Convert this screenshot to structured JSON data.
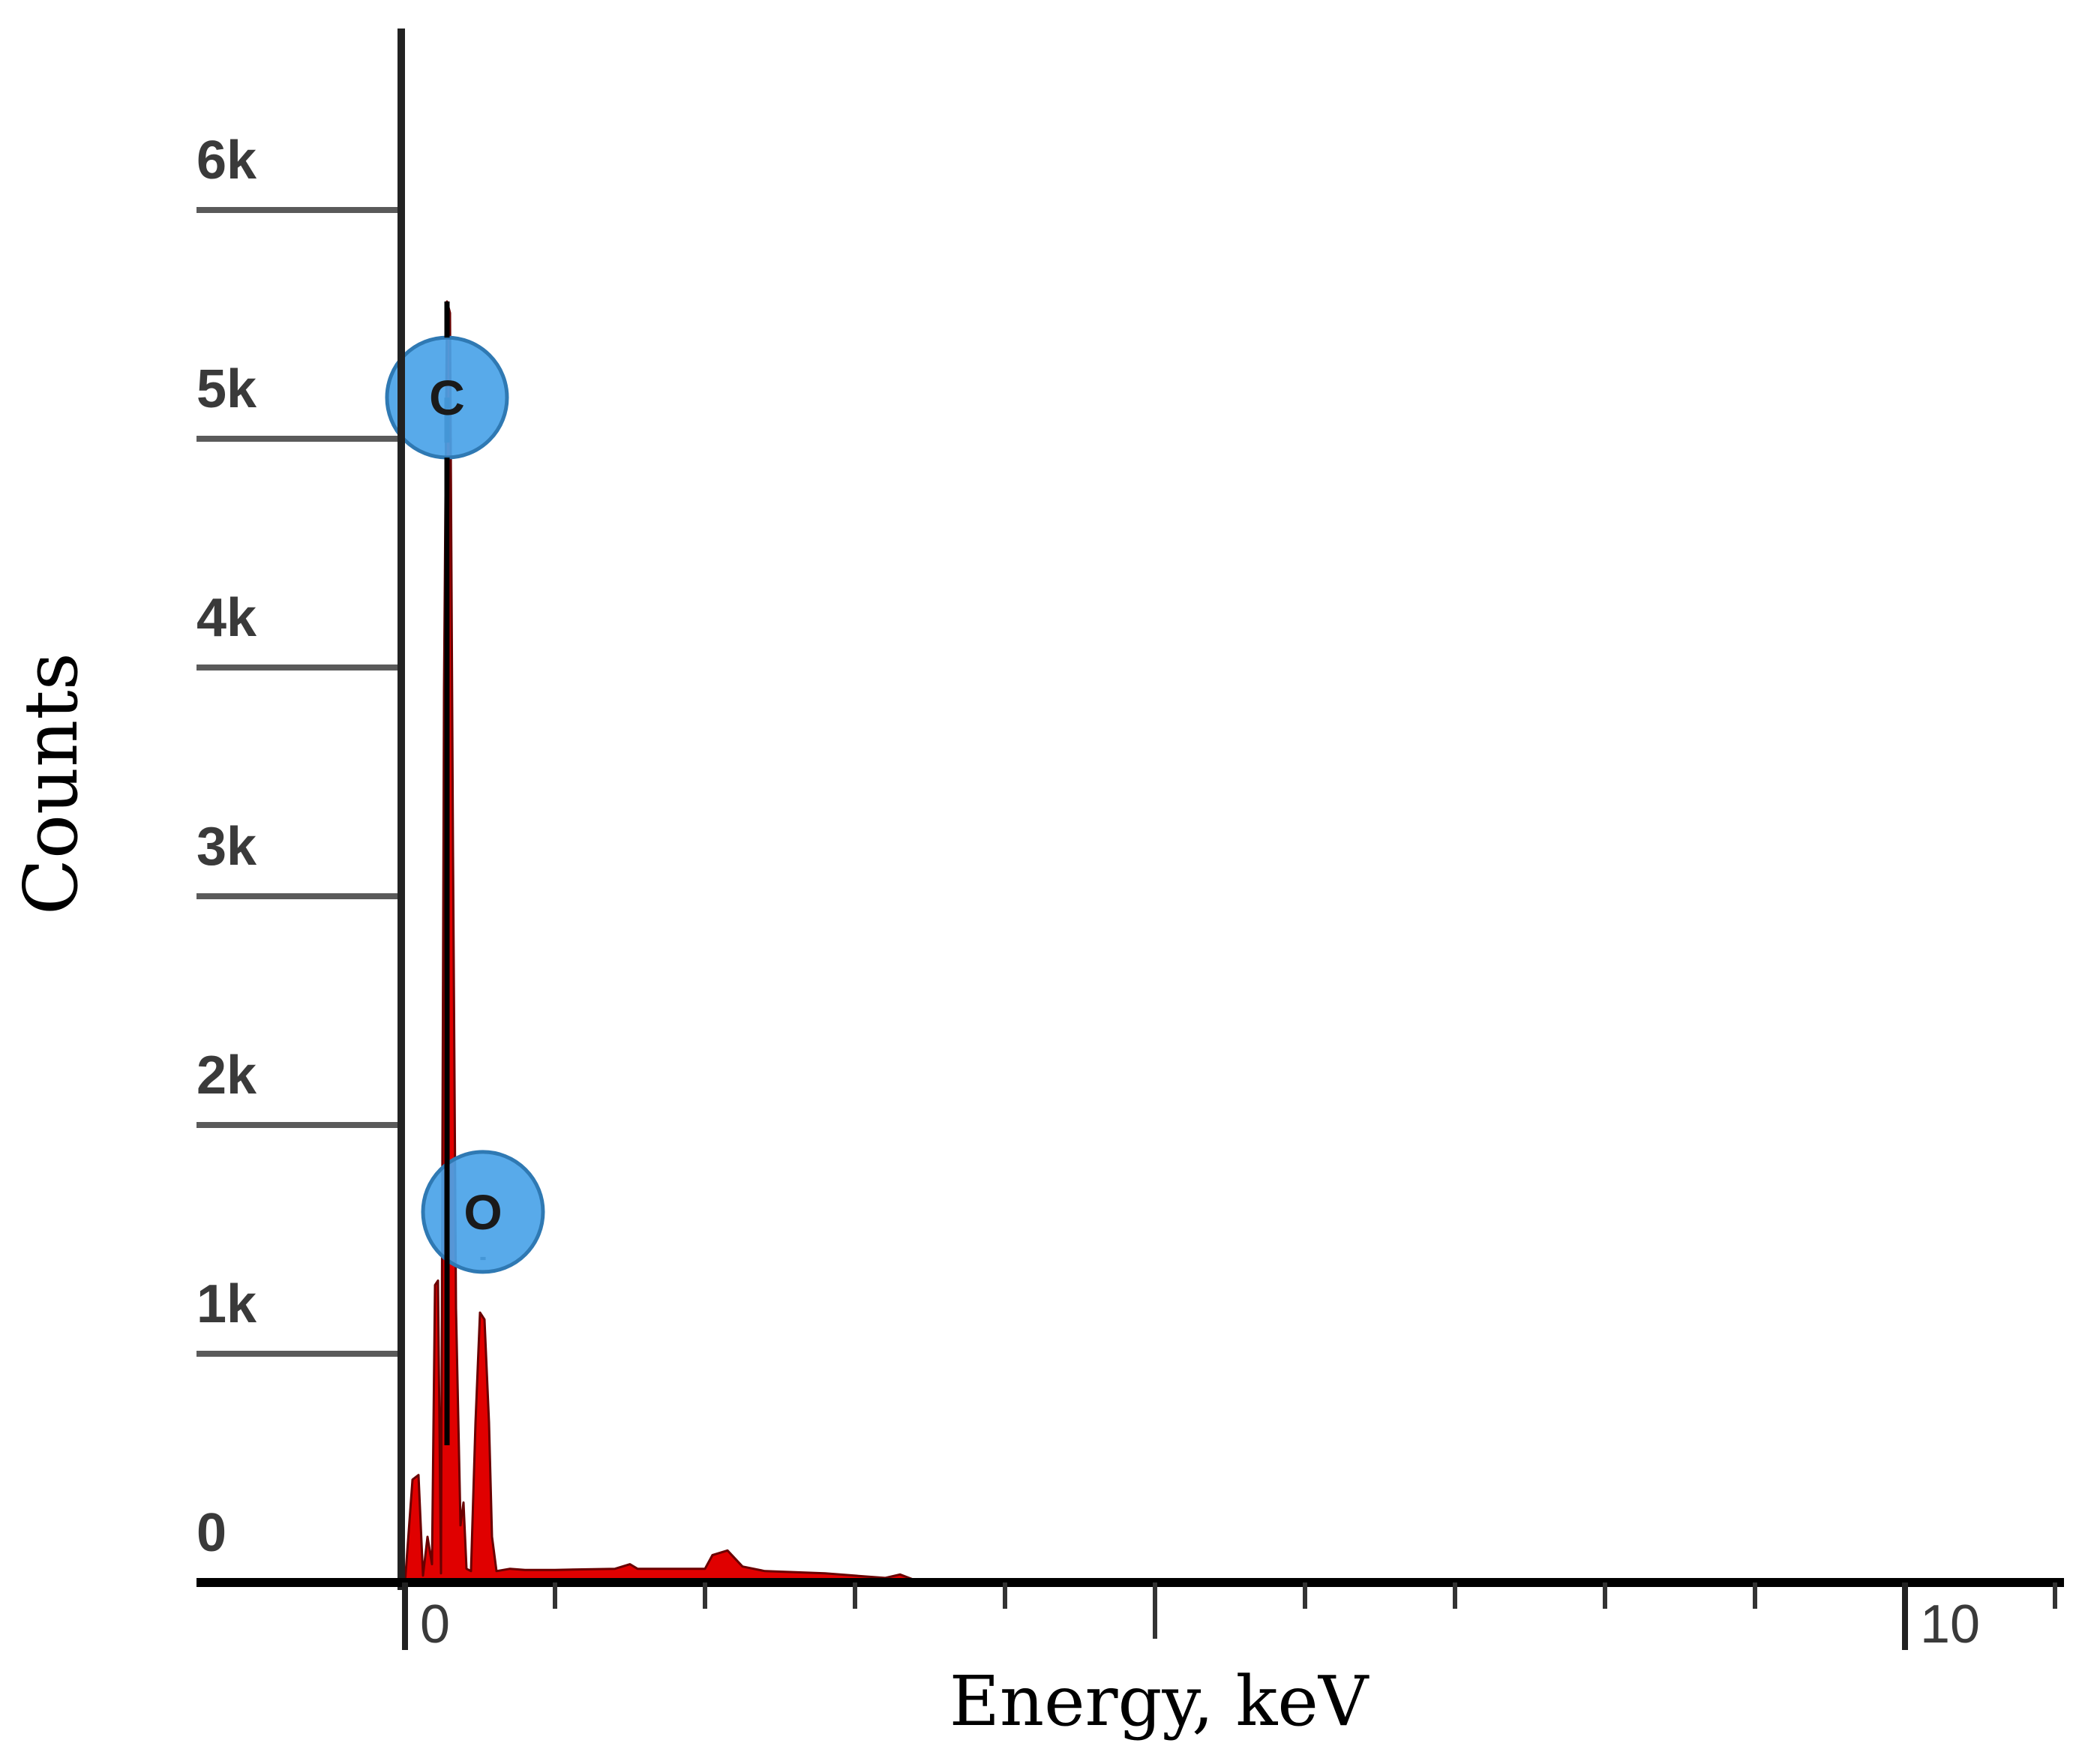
{
  "chart_data": {
    "type": "area",
    "title": "",
    "xlabel": "Energy, keV",
    "ylabel": "Counts",
    "xlim": [
      0,
      11
    ],
    "ylim": [
      0,
      6000
    ],
    "y_ticks": [
      {
        "value": 0,
        "label": "0"
      },
      {
        "value": 1000,
        "label": "1k"
      },
      {
        "value": 2000,
        "label": "2k"
      },
      {
        "value": 3000,
        "label": "3k"
      },
      {
        "value": 4000,
        "label": "4k"
      },
      {
        "value": 5000,
        "label": "5k"
      },
      {
        "value": 6000,
        "label": "6k"
      }
    ],
    "x_major_ticks": [
      {
        "value": 0,
        "label": "0"
      },
      {
        "value": 10,
        "label": "10"
      }
    ],
    "x_minor_ticks": [
      1,
      2,
      3,
      4,
      5,
      6,
      7,
      8,
      9,
      11
    ],
    "x_mid_ticks": [
      5
    ],
    "grid": false,
    "series": [
      {
        "color": "#e00000",
        "points": [
          [
            0.0,
            0
          ],
          [
            0.05,
            450
          ],
          [
            0.09,
            470
          ],
          [
            0.12,
            30
          ],
          [
            0.15,
            200
          ],
          [
            0.18,
            80
          ],
          [
            0.2,
            1300
          ],
          [
            0.22,
            1320
          ],
          [
            0.24,
            40
          ],
          [
            0.26,
            3900
          ],
          [
            0.28,
            5600
          ],
          [
            0.3,
            5550
          ],
          [
            0.32,
            3200
          ],
          [
            0.34,
            1200
          ],
          [
            0.37,
            250
          ],
          [
            0.39,
            350
          ],
          [
            0.41,
            60
          ],
          [
            0.44,
            50
          ],
          [
            0.47,
            700
          ],
          [
            0.5,
            1180
          ],
          [
            0.53,
            1150
          ],
          [
            0.56,
            700
          ],
          [
            0.58,
            200
          ],
          [
            0.61,
            50
          ],
          [
            0.7,
            60
          ],
          [
            0.8,
            55
          ],
          [
            1.0,
            55
          ],
          [
            1.4,
            60
          ],
          [
            1.5,
            80
          ],
          [
            1.55,
            60
          ],
          [
            2.0,
            60
          ],
          [
            2.05,
            120
          ],
          [
            2.15,
            140
          ],
          [
            2.25,
            70
          ],
          [
            2.4,
            50
          ],
          [
            2.8,
            40
          ],
          [
            3.2,
            20
          ],
          [
            3.3,
            35
          ],
          [
            3.4,
            10
          ],
          [
            3.8,
            5
          ],
          [
            11.0,
            0
          ]
        ]
      }
    ],
    "element_markers": [
      {
        "label": "C",
        "energy": 0.28,
        "counts": 5180,
        "line_top": 5180
      },
      {
        "label": "O",
        "energy": 0.52,
        "counts": 1620,
        "line_top": 1180
      }
    ],
    "marker_color": "#4aa3e8",
    "axis_color": "#000000",
    "ytick_color": "#5a5a5a"
  }
}
